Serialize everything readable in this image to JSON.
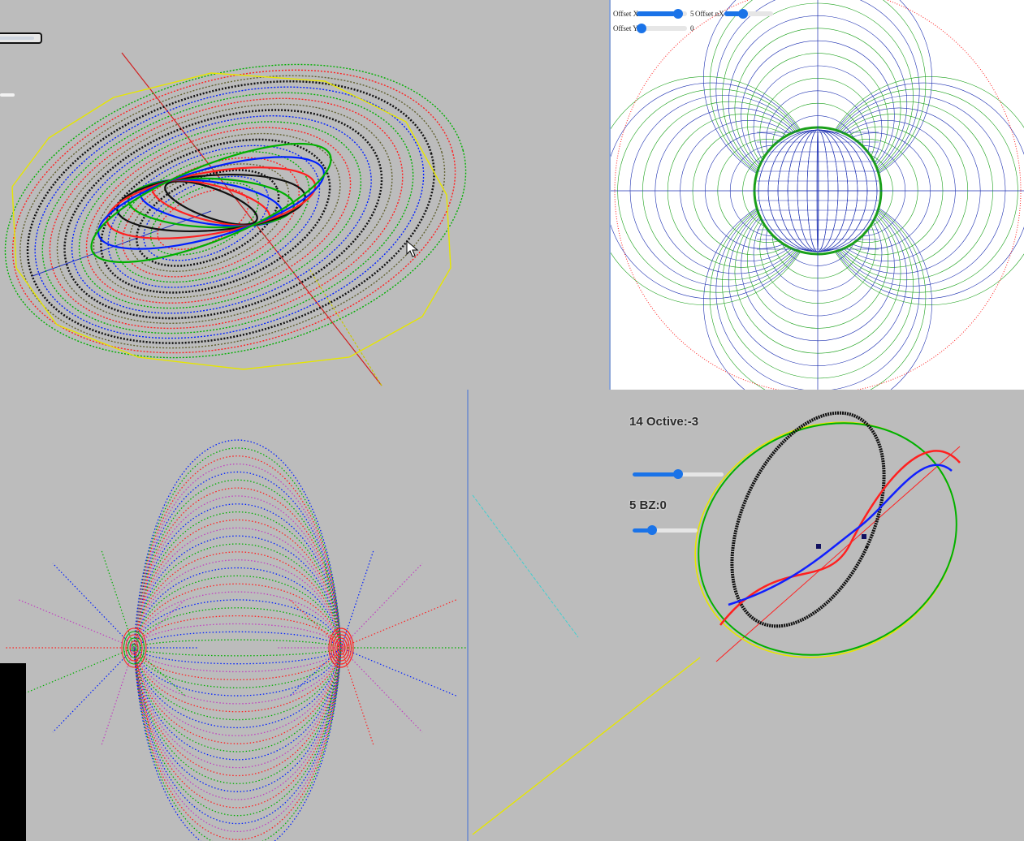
{
  "top_right_controls": {
    "offset_x_label": "Offset X",
    "offset_x_value": "5",
    "offset_nx_label": "Offset nX",
    "offset_y_label": "Offset Y",
    "offset_y_value": "0"
  },
  "bottom_right_controls": {
    "octive_label": "14 Octive:-3",
    "bz_label": "5 BZ:0"
  },
  "sliders": {
    "offset_x": 0.75,
    "offset_nx": 0.3,
    "offset_y": 0.0,
    "octive": 0.5,
    "bz": 0.3
  },
  "colors": {
    "background": "#bcbcbc",
    "accent": "#1a73e8",
    "red": "#ff0000",
    "green": "#00c000",
    "blue": "#0000ff",
    "yellow": "#e6e600",
    "black": "#000000"
  },
  "icons": [
    "mouse-cursor-icon"
  ]
}
